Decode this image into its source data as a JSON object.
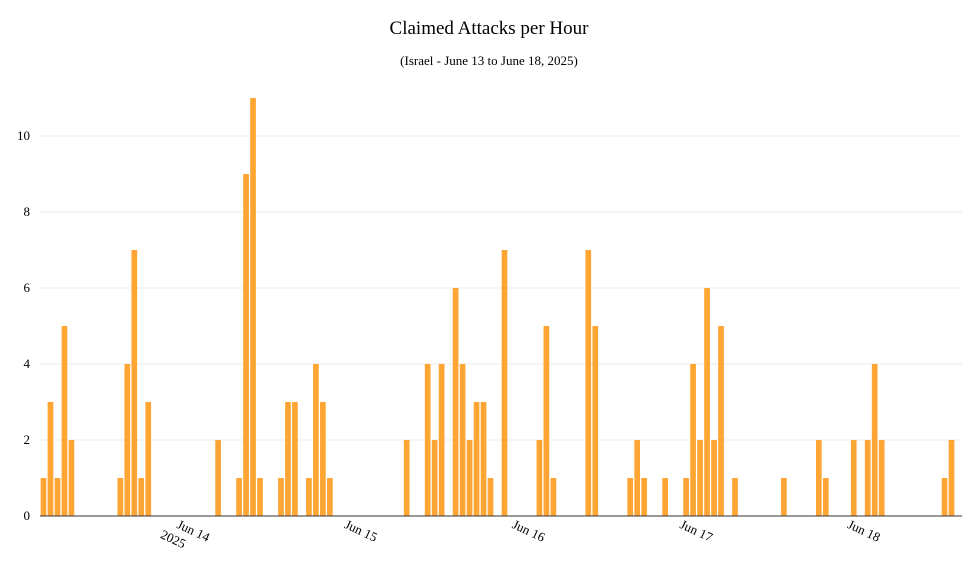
{
  "chart_data": {
    "type": "bar",
    "title": "Claimed Attacks per Hour",
    "subtitle": "(Israel - June 13 to June 18, 2025)",
    "xlabel": "",
    "ylabel": "",
    "ylim": [
      0,
      11
    ],
    "y_ticks": [
      0,
      2,
      4,
      6,
      8,
      10
    ],
    "grid": true,
    "bar_color": "#FFA533",
    "x_range_hours": [
      0,
      131
    ],
    "x_ticks": [
      {
        "hour": 22,
        "label": "Jun 14",
        "sublabel": "2025"
      },
      {
        "hour": 46,
        "label": "Jun 15"
      },
      {
        "hour": 70,
        "label": "Jun 16"
      },
      {
        "hour": 94,
        "label": "Jun 17"
      },
      {
        "hour": 118,
        "label": "Jun 18"
      }
    ],
    "bars": [
      {
        "hour": 0,
        "value": 1
      },
      {
        "hour": 1,
        "value": 3
      },
      {
        "hour": 2,
        "value": 1
      },
      {
        "hour": 3,
        "value": 5
      },
      {
        "hour": 4,
        "value": 2
      },
      {
        "hour": 11,
        "value": 1
      },
      {
        "hour": 12,
        "value": 4
      },
      {
        "hour": 13,
        "value": 7
      },
      {
        "hour": 14,
        "value": 1
      },
      {
        "hour": 15,
        "value": 3
      },
      {
        "hour": 25,
        "value": 2
      },
      {
        "hour": 28,
        "value": 1
      },
      {
        "hour": 29,
        "value": 9
      },
      {
        "hour": 30,
        "value": 11
      },
      {
        "hour": 31,
        "value": 1
      },
      {
        "hour": 34,
        "value": 1
      },
      {
        "hour": 35,
        "value": 3
      },
      {
        "hour": 36,
        "value": 3
      },
      {
        "hour": 38,
        "value": 1
      },
      {
        "hour": 39,
        "value": 4
      },
      {
        "hour": 40,
        "value": 3
      },
      {
        "hour": 41,
        "value": 1
      },
      {
        "hour": 52,
        "value": 2
      },
      {
        "hour": 55,
        "value": 4
      },
      {
        "hour": 56,
        "value": 2
      },
      {
        "hour": 57,
        "value": 4
      },
      {
        "hour": 59,
        "value": 6
      },
      {
        "hour": 60,
        "value": 4
      },
      {
        "hour": 61,
        "value": 2
      },
      {
        "hour": 62,
        "value": 3
      },
      {
        "hour": 63,
        "value": 3
      },
      {
        "hour": 64,
        "value": 1
      },
      {
        "hour": 66,
        "value": 7
      },
      {
        "hour": 71,
        "value": 2
      },
      {
        "hour": 72,
        "value": 5
      },
      {
        "hour": 73,
        "value": 1
      },
      {
        "hour": 78,
        "value": 7
      },
      {
        "hour": 79,
        "value": 5
      },
      {
        "hour": 84,
        "value": 1
      },
      {
        "hour": 85,
        "value": 2
      },
      {
        "hour": 86,
        "value": 1
      },
      {
        "hour": 89,
        "value": 1
      },
      {
        "hour": 92,
        "value": 1
      },
      {
        "hour": 93,
        "value": 4
      },
      {
        "hour": 94,
        "value": 2
      },
      {
        "hour": 95,
        "value": 6
      },
      {
        "hour": 96,
        "value": 2
      },
      {
        "hour": 97,
        "value": 5
      },
      {
        "hour": 99,
        "value": 1
      },
      {
        "hour": 106,
        "value": 1
      },
      {
        "hour": 111,
        "value": 2
      },
      {
        "hour": 112,
        "value": 1
      },
      {
        "hour": 116,
        "value": 2
      },
      {
        "hour": 118,
        "value": 2
      },
      {
        "hour": 119,
        "value": 4
      },
      {
        "hour": 120,
        "value": 2
      },
      {
        "hour": 129,
        "value": 1
      },
      {
        "hour": 130,
        "value": 2
      }
    ]
  }
}
